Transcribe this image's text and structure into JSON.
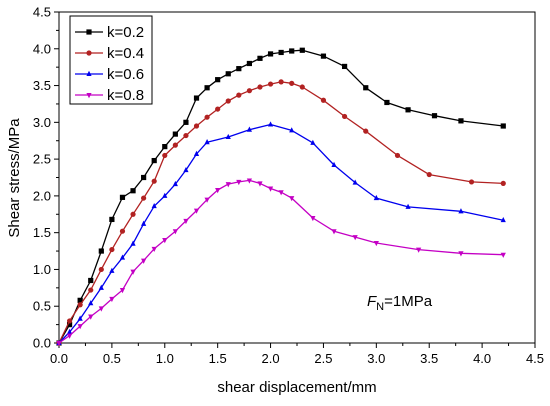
{
  "chart_data": {
    "type": "line",
    "xlabel": "shear displacement/mm",
    "ylabel": "Shear stress/MPa",
    "xlim": [
      0,
      4.5
    ],
    "ylim": [
      0,
      4.5
    ],
    "xticks": [
      "0.0",
      "0.5",
      "1.0",
      "1.5",
      "2.0",
      "2.5",
      "3.0",
      "3.5",
      "4.0",
      "4.5"
    ],
    "yticks": [
      "0.0",
      "0.5",
      "1.0",
      "1.5",
      "2.0",
      "2.5",
      "3.0",
      "3.5",
      "4.0",
      "4.5"
    ],
    "grid": false,
    "legend_position": "top-left",
    "annotation": {
      "main": "F",
      "sub": "N",
      "rest": "=1MPa"
    },
    "series": [
      {
        "name": "k=0.2",
        "color": "#000000",
        "marker": "square",
        "x": [
          0,
          0.1,
          0.2,
          0.3,
          0.4,
          0.5,
          0.6,
          0.7,
          0.8,
          0.9,
          1.0,
          1.1,
          1.2,
          1.3,
          1.4,
          1.5,
          1.6,
          1.7,
          1.8,
          1.9,
          2.0,
          2.1,
          2.2,
          2.3,
          2.5,
          2.7,
          2.9,
          3.1,
          3.3,
          3.55,
          3.8,
          4.2
        ],
        "y": [
          0,
          0.25,
          0.58,
          0.85,
          1.25,
          1.68,
          1.98,
          2.07,
          2.25,
          2.48,
          2.67,
          2.84,
          3.0,
          3.33,
          3.47,
          3.58,
          3.66,
          3.73,
          3.8,
          3.87,
          3.93,
          3.95,
          3.97,
          3.98,
          3.9,
          3.76,
          3.47,
          3.27,
          3.17,
          3.09,
          3.02,
          2.95
        ]
      },
      {
        "name": "k=0.4",
        "color": "#b22222",
        "marker": "circle",
        "x": [
          0,
          0.1,
          0.2,
          0.3,
          0.4,
          0.5,
          0.6,
          0.7,
          0.8,
          0.9,
          1.0,
          1.1,
          1.2,
          1.3,
          1.4,
          1.5,
          1.6,
          1.7,
          1.8,
          1.9,
          2.0,
          2.1,
          2.2,
          2.3,
          2.5,
          2.7,
          2.9,
          3.2,
          3.5,
          3.9,
          4.2
        ],
        "y": [
          0,
          0.3,
          0.52,
          0.72,
          1.0,
          1.27,
          1.52,
          1.75,
          1.97,
          2.2,
          2.55,
          2.69,
          2.82,
          2.95,
          3.07,
          3.18,
          3.29,
          3.37,
          3.43,
          3.48,
          3.52,
          3.55,
          3.53,
          3.48,
          3.3,
          3.08,
          2.88,
          2.55,
          2.29,
          2.19,
          2.17
        ]
      },
      {
        "name": "k=0.6",
        "color": "#0000ee",
        "marker": "triangle-up",
        "x": [
          0,
          0.1,
          0.2,
          0.3,
          0.4,
          0.5,
          0.6,
          0.7,
          0.8,
          0.9,
          1.0,
          1.1,
          1.2,
          1.3,
          1.4,
          1.6,
          1.8,
          2.0,
          2.2,
          2.4,
          2.6,
          2.8,
          3.0,
          3.3,
          3.8,
          4.2
        ],
        "y": [
          0,
          0.15,
          0.33,
          0.54,
          0.75,
          0.98,
          1.16,
          1.35,
          1.62,
          1.86,
          2.0,
          2.16,
          2.35,
          2.57,
          2.73,
          2.8,
          2.9,
          2.97,
          2.89,
          2.72,
          2.42,
          2.18,
          1.97,
          1.85,
          1.79,
          1.67
        ]
      },
      {
        "name": "k=0.8",
        "color": "#c400c4",
        "marker": "triangle-down",
        "x": [
          0,
          0.1,
          0.2,
          0.3,
          0.4,
          0.5,
          0.6,
          0.7,
          0.8,
          0.9,
          1.0,
          1.1,
          1.2,
          1.3,
          1.4,
          1.5,
          1.6,
          1.7,
          1.8,
          1.9,
          2.0,
          2.1,
          2.2,
          2.4,
          2.6,
          2.8,
          3.0,
          3.4,
          3.8,
          4.2
        ],
        "y": [
          0,
          0.1,
          0.23,
          0.36,
          0.47,
          0.6,
          0.72,
          0.97,
          1.12,
          1.28,
          1.4,
          1.52,
          1.66,
          1.8,
          1.95,
          2.08,
          2.16,
          2.19,
          2.21,
          2.17,
          2.1,
          2.05,
          1.97,
          1.7,
          1.52,
          1.44,
          1.36,
          1.27,
          1.22,
          1.2
        ]
      }
    ]
  }
}
